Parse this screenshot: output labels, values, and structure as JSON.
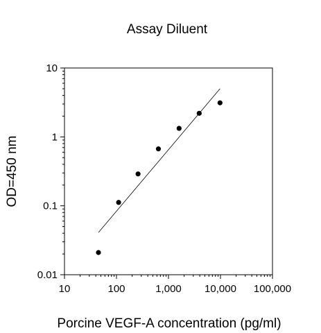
{
  "chart_data": {
    "type": "scatter",
    "title": "Assay Diluent",
    "xlabel": "Porcine VEGF-A concentration (pg/ml)",
    "ylabel": "OD=450 nm",
    "xscale": "log",
    "yscale": "log",
    "xlim": [
      10,
      100000
    ],
    "ylim": [
      0.01,
      10
    ],
    "x_ticks": [
      {
        "value": 10,
        "label": "10"
      },
      {
        "value": 100,
        "label": "100"
      },
      {
        "value": 1000,
        "label": "1,000"
      },
      {
        "value": 10000,
        "label": "10,000"
      },
      {
        "value": 100000,
        "label": "100,000"
      }
    ],
    "y_ticks": [
      {
        "value": 0.01,
        "label": "0.01"
      },
      {
        "value": 0.1,
        "label": "0.1"
      },
      {
        "value": 1,
        "label": "1"
      },
      {
        "value": 10,
        "label": "10"
      }
    ],
    "grid": false,
    "legend": "none",
    "series": [
      {
        "x": [
          45,
          110,
          260,
          640,
          1600,
          3900,
          9800
        ],
        "y": [
          0.021,
          0.112,
          0.29,
          0.67,
          1.33,
          2.2,
          3.12
        ]
      }
    ],
    "fit_line": {
      "x": [
        45,
        9800
      ],
      "y": [
        0.041,
        5.0
      ]
    },
    "colors": {
      "points": "#000000",
      "line": "#000000",
      "axes": "#000000"
    }
  }
}
